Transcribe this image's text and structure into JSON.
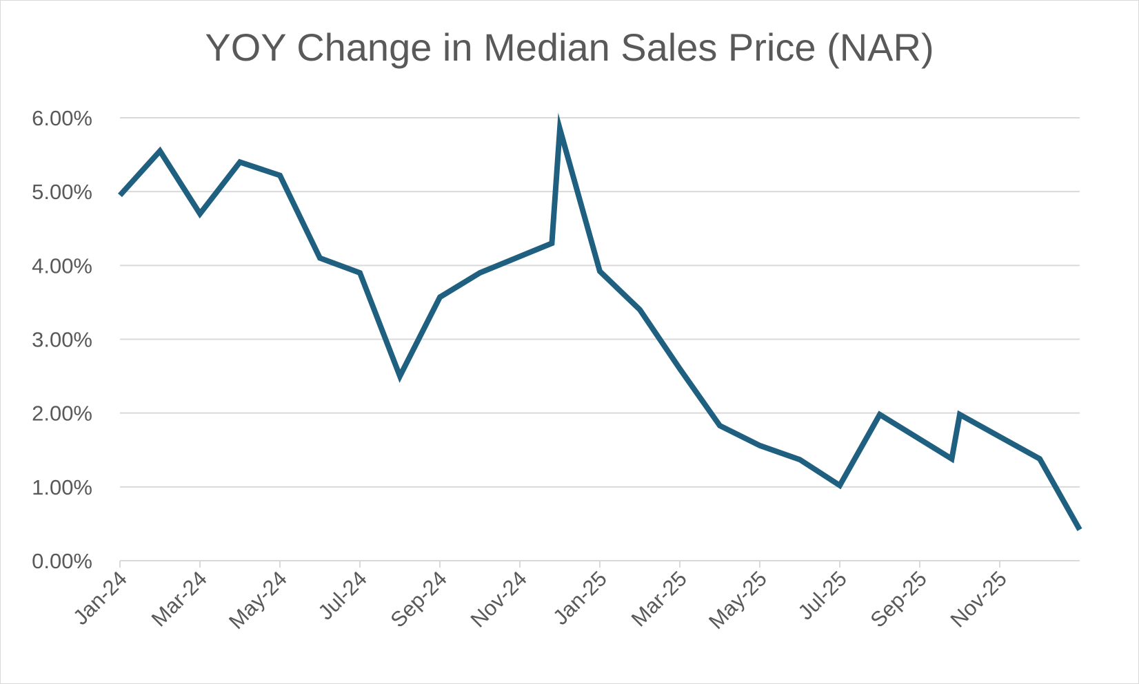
{
  "chart_data": {
    "type": "line",
    "title": "YOY Change in Median Sales Price (NAR)",
    "xlabel": "",
    "ylabel": "",
    "x": [
      "Jan-24",
      "Feb-24",
      "Mar-24",
      "Apr-24",
      "May-24",
      "Jun-24",
      "Jul-24",
      "Aug-24",
      "Sep-24",
      "Oct-24",
      "Nov-24",
      "Dec-24",
      "Jan-25",
      "Feb-25",
      "Mar-25",
      "Apr-25",
      "May-25",
      "Jun-25",
      "Jul-25",
      "Aug-25",
      "Sep-25",
      "Oct-25",
      "Nov-25",
      "Dec-25"
    ],
    "x_tick_labels": [
      "Jan-24",
      "Mar-24",
      "May-24",
      "Jul-24",
      "Sep-24",
      "Nov-24",
      "Jan-25",
      "Mar-25",
      "May-25",
      "Jul-25",
      "Sep-25",
      "Nov-25"
    ],
    "series": [
      {
        "name": "YOY Change in Median Sales Price",
        "color": "#1f5f7f",
        "points": [
          {
            "x": 0.0,
            "y": 4.95
          },
          {
            "x": 1.0,
            "y": 5.55
          },
          {
            "x": 2.0,
            "y": 4.7
          },
          {
            "x": 3.0,
            "y": 5.4
          },
          {
            "x": 4.0,
            "y": 5.22
          },
          {
            "x": 5.0,
            "y": 4.1
          },
          {
            "x": 6.0,
            "y": 3.9
          },
          {
            "x": 7.0,
            "y": 2.5
          },
          {
            "x": 8.0,
            "y": 3.57
          },
          {
            "x": 9.0,
            "y": 3.9
          },
          {
            "x": 10.8,
            "y": 4.3
          },
          {
            "x": 11.0,
            "y": 5.85
          },
          {
            "x": 12.0,
            "y": 3.92
          },
          {
            "x": 13.0,
            "y": 3.4
          },
          {
            "x": 14.0,
            "y": 2.6
          },
          {
            "x": 15.0,
            "y": 1.83
          },
          {
            "x": 16.0,
            "y": 1.56
          },
          {
            "x": 17.0,
            "y": 1.37
          },
          {
            "x": 18.0,
            "y": 1.02
          },
          {
            "x": 19.0,
            "y": 1.98
          },
          {
            "x": 20.8,
            "y": 1.38
          },
          {
            "x": 21.0,
            "y": 1.98
          },
          {
            "x": 22.0,
            "y": 1.68
          },
          {
            "x": 23.0,
            "y": 1.38
          },
          {
            "x": 24.0,
            "y": 0.42
          }
        ]
      }
    ],
    "ylim": [
      0,
      6
    ],
    "xlim": [
      0,
      24
    ],
    "y_ticks": [
      0,
      1,
      2,
      3,
      4,
      5,
      6
    ],
    "y_tick_labels": [
      "0.00%",
      "1.00%",
      "2.00%",
      "3.00%",
      "4.00%",
      "5.00%",
      "6.00%"
    ],
    "grid": true,
    "legend": "none"
  }
}
